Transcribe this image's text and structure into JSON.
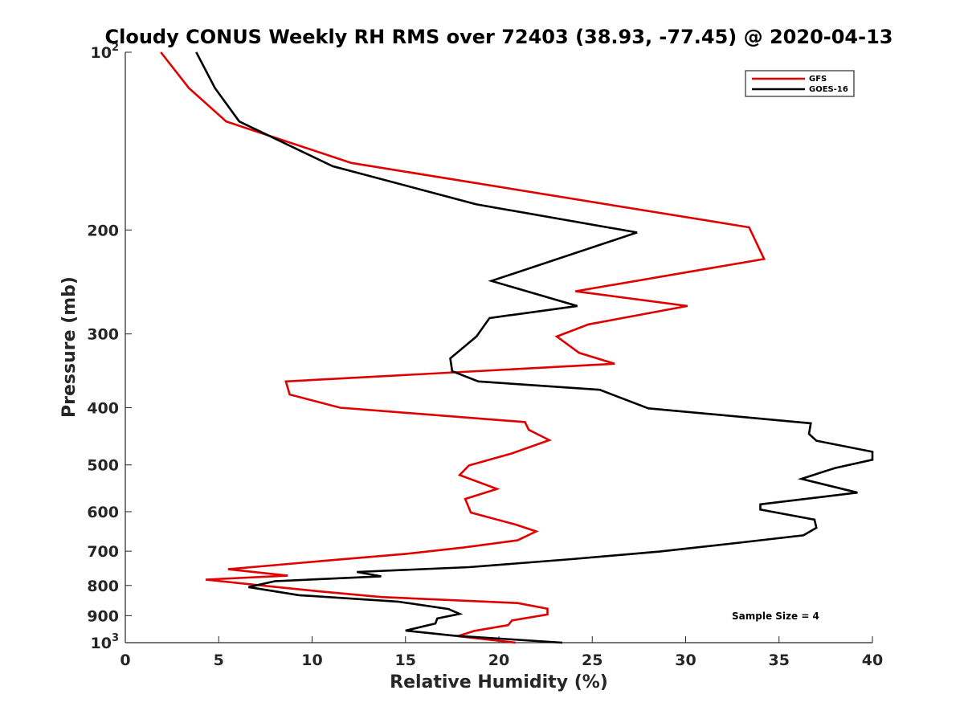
{
  "chart_data": {
    "type": "line",
    "title": "Cloudy CONUS Weekly RH RMS over 72403 (38.93, -77.45) @ 2020-04-13",
    "xlabel": "Relative Humidity (%)",
    "ylabel": "Pressure (mb)",
    "xlim": [
      0,
      40
    ],
    "ylim": [
      100,
      1000
    ],
    "y_scale": "log",
    "y_reversed": true,
    "x_ticks": [
      0,
      5,
      10,
      15,
      20,
      25,
      30,
      35,
      40
    ],
    "y_ticks": [
      {
        "value": 100,
        "label": "10",
        "exp": "2"
      },
      {
        "value": 200,
        "label": "200",
        "exp": ""
      },
      {
        "value": 300,
        "label": "300",
        "exp": ""
      },
      {
        "value": 400,
        "label": "400",
        "exp": ""
      },
      {
        "value": 500,
        "label": "500",
        "exp": ""
      },
      {
        "value": 600,
        "label": "600",
        "exp": ""
      },
      {
        "value": 700,
        "label": "700",
        "exp": ""
      },
      {
        "value": 800,
        "label": "800",
        "exp": ""
      },
      {
        "value": 900,
        "label": "900",
        "exp": ""
      },
      {
        "value": 1000,
        "label": "10",
        "exp": "3"
      }
    ],
    "grid": false,
    "legend_position": "top-right",
    "annotation": "Sample Size = 4",
    "series": [
      {
        "name": "GFS",
        "color": "#e00000",
        "points": [
          [
            1.9,
            100
          ],
          [
            3.4,
            115
          ],
          [
            5.4,
            131
          ],
          [
            12.1,
            154
          ],
          [
            33.4,
            198
          ],
          [
            34.2,
            224
          ],
          [
            24.1,
            254
          ],
          [
            30.1,
            269
          ],
          [
            24.8,
            289
          ],
          [
            23.1,
            303
          ],
          [
            24.3,
            323
          ],
          [
            26.2,
            337
          ],
          [
            8.6,
            361
          ],
          [
            8.8,
            380
          ],
          [
            11.5,
            400
          ],
          [
            21.4,
            423
          ],
          [
            21.6,
            436
          ],
          [
            22.7,
            454
          ],
          [
            20.7,
            478
          ],
          [
            18.4,
            501
          ],
          [
            17.9,
            520
          ],
          [
            19.9,
            549
          ],
          [
            18.2,
            571
          ],
          [
            18.5,
            602
          ],
          [
            20.9,
            631
          ],
          [
            22.0,
            648
          ],
          [
            21.0,
            671
          ],
          [
            18.1,
            690
          ],
          [
            15.1,
            707
          ],
          [
            10.6,
            727
          ],
          [
            5.5,
            751
          ],
          [
            8.7,
            770
          ],
          [
            4.3,
            782
          ],
          [
            7.6,
            802
          ],
          [
            10.3,
            818
          ],
          [
            13.7,
            837
          ],
          [
            21.0,
            857
          ],
          [
            22.6,
            876
          ],
          [
            22.6,
            896
          ],
          [
            20.7,
            917
          ],
          [
            20.5,
            934
          ],
          [
            18.7,
            955
          ],
          [
            17.8,
            975
          ],
          [
            20.9,
            1000
          ]
        ]
      },
      {
        "name": "GOES-16",
        "color": "#000000",
        "points": [
          [
            3.8,
            100
          ],
          [
            4.8,
            115
          ],
          [
            6.1,
            131
          ],
          [
            11.1,
            156
          ],
          [
            18.8,
            181
          ],
          [
            27.4,
            202
          ],
          [
            19.6,
            244
          ],
          [
            24.2,
            269
          ],
          [
            19.5,
            282
          ],
          [
            18.8,
            303
          ],
          [
            17.4,
            330
          ],
          [
            17.5,
            347
          ],
          [
            18.9,
            361
          ],
          [
            25.4,
            373
          ],
          [
            28.0,
            401
          ],
          [
            36.7,
            425
          ],
          [
            36.6,
            443
          ],
          [
            37.0,
            455
          ],
          [
            40.0,
            475
          ],
          [
            40.0,
            490
          ],
          [
            38.0,
            506
          ],
          [
            36.2,
            528
          ],
          [
            39.2,
            557
          ],
          [
            34.0,
            583
          ],
          [
            34.0,
            595
          ],
          [
            36.9,
            619
          ],
          [
            37.0,
            639
          ],
          [
            36.3,
            658
          ],
          [
            32.7,
            678
          ],
          [
            28.6,
            701
          ],
          [
            23.9,
            722
          ],
          [
            18.4,
            745
          ],
          [
            12.4,
            759
          ],
          [
            13.7,
            772
          ],
          [
            8.0,
            787
          ],
          [
            6.6,
            805
          ],
          [
            9.3,
            831
          ],
          [
            14.6,
            852
          ],
          [
            17.3,
            877
          ],
          [
            17.9,
            894
          ],
          [
            16.7,
            910
          ],
          [
            16.6,
            928
          ],
          [
            15.0,
            954
          ],
          [
            17.6,
            973
          ],
          [
            23.4,
            1000
          ]
        ]
      }
    ]
  }
}
